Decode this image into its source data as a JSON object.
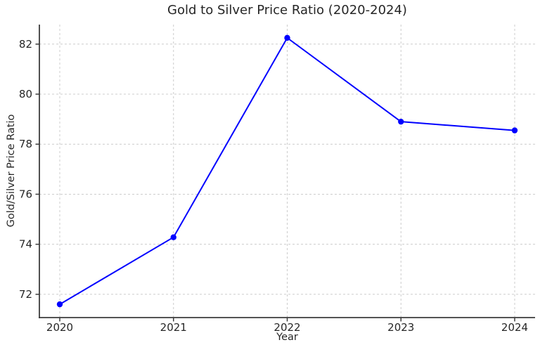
{
  "chart_data": {
    "type": "line",
    "title": "Gold to Silver Price Ratio (2020-2024)",
    "xlabel": "Year",
    "ylabel": "Gold/Silver Price Ratio",
    "x": [
      2020,
      2021,
      2022,
      2023,
      2024
    ],
    "xticks": [
      "2020",
      "2021",
      "2022",
      "2023",
      "2024"
    ],
    "yticks": [
      72,
      74,
      76,
      78,
      80,
      82
    ],
    "series": [
      {
        "name": "Gold/Silver Price Ratio",
        "values": [
          71.6,
          74.28,
          82.25,
          78.9,
          78.55
        ]
      }
    ],
    "ylim": [
      71.07,
      82.78
    ],
    "xlim": [
      2020,
      2024
    ],
    "grid": true,
    "grid_style": "dashed",
    "legend": null,
    "marker": "circle",
    "colors": {
      "line": "#0000ff",
      "marker": "#0000ff",
      "grid": "#cccccc",
      "spine": "#3c3c3c",
      "tick": "#3c3c3c",
      "text": "#262626",
      "background": "#ffffff"
    }
  }
}
